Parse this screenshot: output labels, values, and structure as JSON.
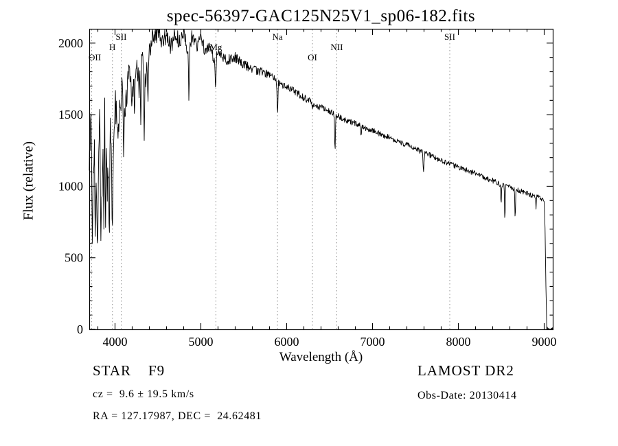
{
  "chart_data": {
    "type": "line",
    "title": "spec-56397-GAC125N25V1_sp06-182.fits",
    "xlabel": "Wavelength (Å)",
    "ylabel": "Flux (relative)",
    "xlim": [
      3700,
      9100
    ],
    "ylim": [
      0,
      2100
    ],
    "xticks": [
      4000,
      5000,
      6000,
      7000,
      8000,
      9000
    ],
    "x_minor_step": 200,
    "yticks": [
      0,
      500,
      1000,
      1500,
      2000
    ],
    "y_minor_step": 100,
    "grid": "dotted vertical lines at labeled spectral features only",
    "legend": "none",
    "line_markers": [
      {
        "label": "OII",
        "wavelength": 3727,
        "row": 2
      },
      {
        "label": "H",
        "wavelength": 3970,
        "row": 1
      },
      {
        "label": "SII",
        "wavelength": 4072,
        "row": 0
      },
      {
        "label": "Mg",
        "wavelength": 5175,
        "row": 1
      },
      {
        "label": "Na",
        "wavelength": 5893,
        "row": 0
      },
      {
        "label": "OI",
        "wavelength": 6300,
        "row": 2
      },
      {
        "label": "NII",
        "wavelength": 6583,
        "row": 1
      },
      {
        "label": "SII",
        "wavelength": 7900,
        "row": 0
      }
    ],
    "series": [
      {
        "name": "flux",
        "anchors": [
          [
            3700,
            1100
          ],
          [
            3720,
            1500
          ],
          [
            3740,
            900
          ],
          [
            3760,
            1200
          ],
          [
            3790,
            800
          ],
          [
            3820,
            1400
          ],
          [
            3850,
            900
          ],
          [
            3880,
            1600
          ],
          [
            3910,
            1000
          ],
          [
            3940,
            1500
          ],
          [
            3970,
            1100
          ],
          [
            4000,
            1600
          ],
          [
            4040,
            1400
          ],
          [
            4080,
            1700
          ],
          [
            4120,
            1500
          ],
          [
            4160,
            1800
          ],
          [
            4200,
            1600
          ],
          [
            4240,
            1850
          ],
          [
            4280,
            1700
          ],
          [
            4320,
            1900
          ],
          [
            4360,
            1750
          ],
          [
            4400,
            1950
          ],
          [
            4450,
            2050
          ],
          [
            4500,
            2080
          ],
          [
            4550,
            2000
          ],
          [
            4600,
            2060
          ],
          [
            4650,
            1980
          ],
          [
            4700,
            2070
          ],
          [
            4750,
            2000
          ],
          [
            4800,
            2060
          ],
          [
            4850,
            1950
          ],
          [
            4900,
            2050
          ],
          [
            4950,
            1980
          ],
          [
            5000,
            2020
          ],
          [
            5050,
            1950
          ],
          [
            5100,
            1980
          ],
          [
            5150,
            1900
          ],
          [
            5200,
            1930
          ],
          [
            5300,
            1880
          ],
          [
            5400,
            1900
          ],
          [
            5500,
            1850
          ],
          [
            5600,
            1820
          ],
          [
            5700,
            1800
          ],
          [
            5800,
            1780
          ],
          [
            5900,
            1720
          ],
          [
            6000,
            1700
          ],
          [
            6100,
            1660
          ],
          [
            6200,
            1620
          ],
          [
            6300,
            1580
          ],
          [
            6400,
            1550
          ],
          [
            6500,
            1520
          ],
          [
            6600,
            1490
          ],
          [
            6700,
            1460
          ],
          [
            6800,
            1440
          ],
          [
            6900,
            1410
          ],
          [
            7000,
            1390
          ],
          [
            7100,
            1360
          ],
          [
            7200,
            1340
          ],
          [
            7300,
            1310
          ],
          [
            7400,
            1290
          ],
          [
            7500,
            1260
          ],
          [
            7600,
            1230
          ],
          [
            7700,
            1210
          ],
          [
            7800,
            1180
          ],
          [
            7900,
            1160
          ],
          [
            8000,
            1130
          ],
          [
            8100,
            1110
          ],
          [
            8200,
            1090
          ],
          [
            8300,
            1060
          ],
          [
            8400,
            1040
          ],
          [
            8500,
            1010
          ],
          [
            8600,
            990
          ],
          [
            8700,
            970
          ],
          [
            8800,
            950
          ],
          [
            8900,
            930
          ],
          [
            8960,
            920
          ],
          [
            9000,
            900
          ],
          [
            9010,
            700
          ],
          [
            9020,
            300
          ],
          [
            9030,
            0
          ],
          [
            9100,
            0
          ]
        ]
      }
    ],
    "dips": [
      [
        3735,
        600,
        10
      ],
      [
        3770,
        650,
        10
      ],
      [
        3798,
        520,
        10
      ],
      [
        3835,
        620,
        10
      ],
      [
        3870,
        700,
        10
      ],
      [
        3889,
        640,
        10
      ],
      [
        3933,
        470,
        10
      ],
      [
        3968,
        620,
        10
      ],
      [
        4101,
        1150,
        10
      ],
      [
        4227,
        1400,
        8
      ],
      [
        4300,
        1430,
        10
      ],
      [
        4340,
        1320,
        10
      ],
      [
        4383,
        1520,
        8
      ],
      [
        4861,
        1560,
        10
      ],
      [
        5172,
        1650,
        12
      ],
      [
        5893,
        1470,
        10
      ],
      [
        6300,
        1540,
        7
      ],
      [
        6563,
        1190,
        9
      ],
      [
        6867,
        1340,
        10
      ],
      [
        7594,
        1090,
        12
      ],
      [
        8498,
        850,
        8
      ],
      [
        8542,
        710,
        8
      ],
      [
        8662,
        730,
        8
      ],
      [
        8905,
        840,
        7
      ]
    ],
    "noise": {
      "seed": 20130414,
      "step": 5,
      "red": 18,
      "blue": 150,
      "scale": 800
    }
  },
  "footer": {
    "star_class": "STAR    F9",
    "survey_release": "LAMOST DR2",
    "cz": "cz =  9.6 ± 19.5 km/s",
    "obs_date": "Obs-Date: 20130414",
    "coords": "RA = 127.17987, DEC =  24.62481"
  }
}
